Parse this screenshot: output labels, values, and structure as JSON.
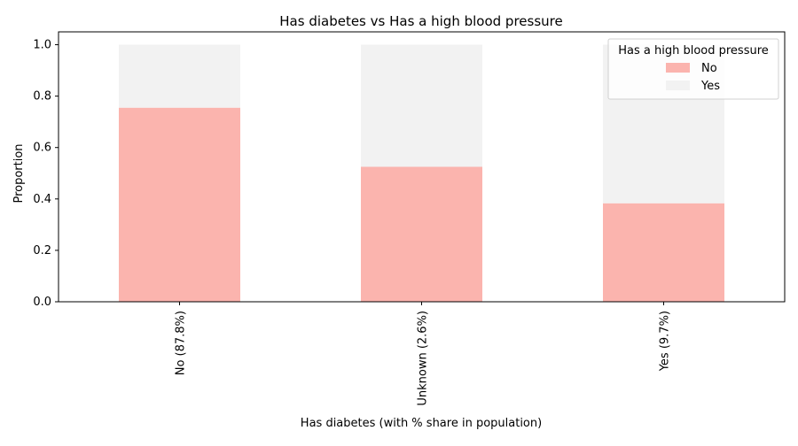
{
  "chart_data": {
    "type": "bar",
    "stacked": true,
    "title": "Has diabetes vs Has a high blood pressure",
    "xlabel": "Has diabetes (with % share in population)",
    "ylabel": "Proportion",
    "categories": [
      "No (87.8%)",
      "Unknown (2.6%)",
      "Yes (9.7%)"
    ],
    "series": [
      {
        "name": "No",
        "values": [
          0.755,
          0.525,
          0.383
        ],
        "color": "#fbb4ae"
      },
      {
        "name": "Yes",
        "values": [
          0.245,
          0.475,
          0.617
        ],
        "color": "#f2f2f2"
      }
    ],
    "ylim": [
      0,
      1.05
    ],
    "yticks": [
      0.0,
      0.2,
      0.4,
      0.6,
      0.8,
      1.0
    ],
    "ytick_labels": [
      "0.0",
      "0.2",
      "0.4",
      "0.6",
      "0.8",
      "1.0"
    ],
    "legend": {
      "title": "Has a high blood pressure",
      "placement": "top-right"
    },
    "grid": false
  }
}
